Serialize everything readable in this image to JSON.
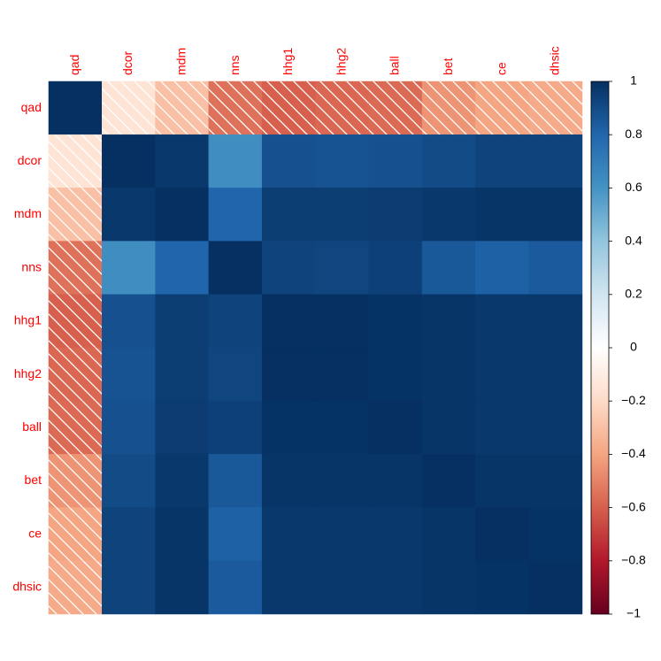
{
  "chart_data": {
    "type": "heatmap",
    "categories": [
      "qad",
      "dcor",
      "mdm",
      "nns",
      "hhg1",
      "hhg2",
      "ball",
      "bet",
      "ce",
      "dhsic"
    ],
    "values": [
      [
        1,
        -0.15,
        -0.3,
        -0.55,
        -0.6,
        -0.58,
        -0.57,
        -0.45,
        -0.4,
        -0.38
      ],
      [
        -0.15,
        1,
        0.97,
        0.62,
        0.88,
        0.87,
        0.88,
        0.9,
        0.93,
        0.93
      ],
      [
        -0.3,
        0.97,
        1,
        0.8,
        0.95,
        0.95,
        0.96,
        0.97,
        0.98,
        0.98
      ],
      [
        -0.55,
        0.62,
        0.8,
        1,
        0.93,
        0.92,
        0.94,
        0.85,
        0.82,
        0.84
      ],
      [
        -0.6,
        0.88,
        0.95,
        0.93,
        1,
        1,
        0.99,
        0.98,
        0.97,
        0.97
      ],
      [
        -0.58,
        0.87,
        0.95,
        0.92,
        1,
        1,
        0.99,
        0.98,
        0.97,
        0.97
      ],
      [
        -0.57,
        0.88,
        0.96,
        0.94,
        0.99,
        0.99,
        1,
        0.98,
        0.97,
        0.97
      ],
      [
        -0.45,
        0.9,
        0.97,
        0.85,
        0.98,
        0.98,
        0.98,
        1,
        0.98,
        0.98
      ],
      [
        -0.4,
        0.93,
        0.98,
        0.82,
        0.97,
        0.97,
        0.97,
        0.98,
        1,
        0.99
      ],
      [
        -0.38,
        0.93,
        0.98,
        0.84,
        0.97,
        0.97,
        0.97,
        0.98,
        0.99,
        1
      ]
    ],
    "colors": [
      "#67001F",
      "#B2182B",
      "#D6604D",
      "#F4A582",
      "#FDDBC7",
      "#FFFFFF",
      "#D1E5F0",
      "#92C5DE",
      "#4393C3",
      "#2166AC",
      "#053061"
    ],
    "zlim": [
      -1,
      1
    ],
    "zticks": [
      {
        "value": -1,
        "label": "−1"
      },
      {
        "value": -0.8,
        "label": "−0.8"
      },
      {
        "value": -0.6,
        "label": "−0.6"
      },
      {
        "value": -0.4,
        "label": "−0.4"
      },
      {
        "value": -0.2,
        "label": "−0.2"
      },
      0,
      0.2,
      0.4,
      0.6,
      0.8,
      1
    ],
    "label_color": "#FF0000",
    "hatch_negative": true
  }
}
